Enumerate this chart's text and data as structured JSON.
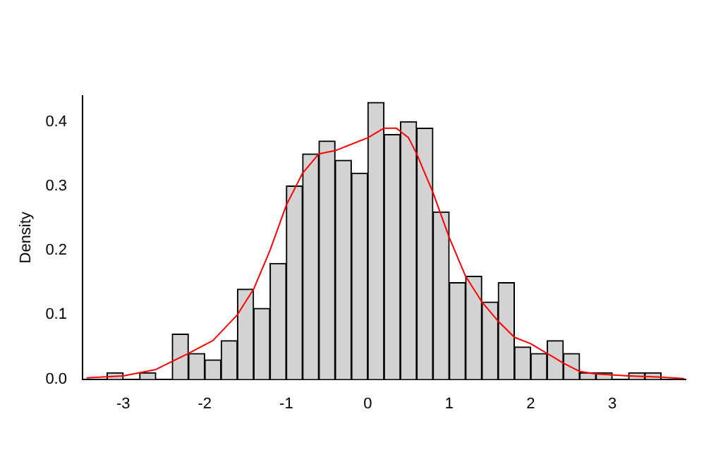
{
  "chart_data": {
    "type": "histogram",
    "ylabel": "Density",
    "bins": [
      -3.2,
      -3.0,
      -2.8,
      -2.6,
      -2.4,
      -2.2,
      -2.0,
      -1.8,
      -1.6,
      -1.4,
      -1.2,
      -1.0,
      -0.8,
      -0.6,
      -0.4,
      -0.2,
      0,
      0.2,
      0.4,
      0.6,
      0.8,
      1.0,
      1.2,
      1.4,
      1.6,
      1.8,
      2.0,
      2.2,
      2.4,
      2.6,
      2.8,
      3.0,
      3.2,
      3.4,
      3.6
    ],
    "values": [
      0.01,
      0,
      0.01,
      0,
      0.07,
      0.04,
      0.03,
      0.06,
      0.14,
      0.11,
      0.18,
      0.3,
      0.35,
      0.37,
      0.34,
      0.32,
      0.43,
      0.38,
      0.4,
      0.39,
      0.26,
      0.15,
      0.16,
      0.12,
      0.15,
      0.05,
      0.04,
      0.06,
      0.04,
      0.01,
      0.01,
      0,
      0.01,
      0.01
    ],
    "color": "#d3d3d3",
    "series": [
      {
        "type": "line",
        "color": "#ff0000",
        "x": [
          -3.45,
          -3.0,
          -2.6,
          -2.2,
          -1.9,
          -1.6,
          -1.4,
          -1.2,
          -1.0,
          -0.8,
          -0.6,
          -0.4,
          -0.2,
          0,
          0.2,
          0.35,
          0.5,
          0.6,
          0.7,
          0.8,
          1.0,
          1.2,
          1.4,
          1.6,
          1.8,
          2.0,
          2.2,
          2.4,
          2.6,
          2.8,
          3.2,
          3.6,
          3.88
        ],
        "values": [
          0.002,
          0.005,
          0.015,
          0.04,
          0.06,
          0.1,
          0.14,
          0.2,
          0.27,
          0.32,
          0.35,
          0.355,
          0.365,
          0.375,
          0.39,
          0.39,
          0.375,
          0.35,
          0.32,
          0.29,
          0.22,
          0.16,
          0.12,
          0.09,
          0.065,
          0.055,
          0.04,
          0.025,
          0.012,
          0.008,
          0.005,
          0.003,
          0.001
        ]
      }
    ],
    "xlim": [
      -3.5,
      3.9
    ],
    "xticks": [
      -3,
      -2,
      -1,
      0,
      1,
      2,
      3
    ],
    "ylim": [
      0,
      0.44
    ],
    "yticks": [
      {
        "value": 0,
        "label": "0.0"
      },
      0.1,
      0.2,
      0.3,
      0.4
    ],
    "grid": false,
    "legend": false
  }
}
